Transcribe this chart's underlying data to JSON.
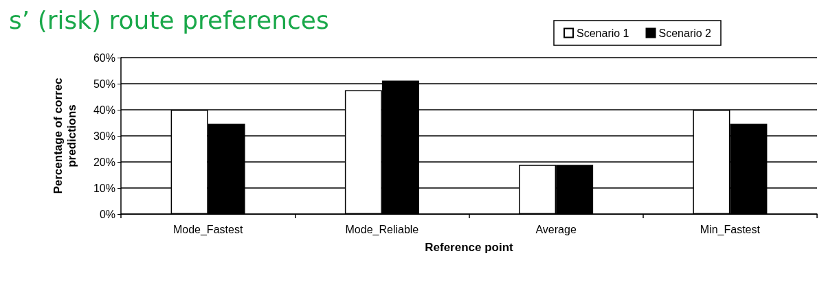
{
  "chart_data": {
    "type": "bar",
    "title": "s’ (risk) route preferences",
    "xlabel": "Reference point",
    "ylabel": "Percentage of correc predictions",
    "categories": [
      "Mode_Fastest",
      "Mode_Reliable",
      "Average",
      "Min_Fastest"
    ],
    "series": [
      {
        "name": "Scenario 1",
        "color": "#ffffff",
        "values": [
          40,
          47.5,
          18.9,
          40
        ]
      },
      {
        "name": "Scenario 2",
        "color": "#000000",
        "values": [
          34.6,
          51.2,
          18.9,
          34.6
        ]
      }
    ],
    "ylim": [
      0,
      60
    ],
    "yticks": [
      {
        "value": 0,
        "label": "0%"
      },
      {
        "value": 10,
        "label": "10%"
      },
      {
        "value": 20,
        "label": "20%"
      },
      {
        "value": 30,
        "label": "30%"
      },
      {
        "value": 40,
        "label": "40%"
      },
      {
        "value": 50,
        "label": "50%"
      },
      {
        "value": 60,
        "label": "60%"
      }
    ],
    "grid": "y",
    "legend": "top right"
  }
}
